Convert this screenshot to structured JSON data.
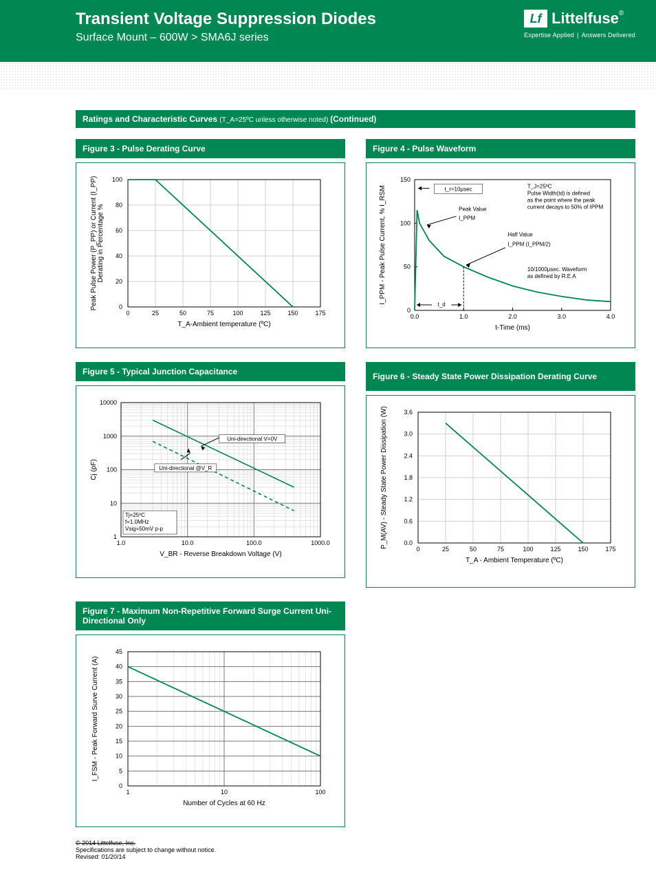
{
  "header": {
    "title": "Transient Voltage Suppression Diodes",
    "subtitle": "Surface Mount – 600W  >  SMA6J series",
    "brand_name": "Littelfuse",
    "brand_reg": "®",
    "tagline_left": "Expertise Applied",
    "tagline_right": "Answers Delivered",
    "logo_mark": "Lf"
  },
  "section_bar": {
    "main": "Ratings and Characteristic Curves ",
    "note": "(T_A=25ºC unless otherwise noted) ",
    "cont": "(Continued)"
  },
  "colors": {
    "brand": "#008752",
    "line": "#008752",
    "dash": "#008752",
    "grid": "#777777",
    "minor": "#b8b8b8",
    "border": "#008752",
    "text": "#000000"
  },
  "fig3": {
    "title": "Figure 3 - Pulse Derating Curve",
    "type": "line",
    "xlabel": "T_A-Ambient temperature (ºC)",
    "ylabel": "Peak Pulse Power (P_PP) or Current (I_PP)\nDerating in Percentage %",
    "xlim": [
      0,
      175
    ],
    "xtick_step": 25,
    "ylim": [
      0,
      100
    ],
    "ytick_step": 20,
    "points": [
      [
        0,
        100
      ],
      [
        25,
        100
      ],
      [
        150,
        0
      ]
    ],
    "line_color": "#008752",
    "grid_color": "#d0d0d0"
  },
  "fig4": {
    "title": "Figure 4 - Pulse Waveform",
    "type": "line",
    "xlabel": "t-Time (ms)",
    "ylabel": "I_PPM - Peak Pulse Current, % I_RSM",
    "xlim": [
      0,
      4.0
    ],
    "xticks": [
      0,
      1.0,
      2.0,
      3.0,
      4.0
    ],
    "ylim": [
      0,
      150
    ],
    "ytick_step": 50,
    "curve": [
      [
        0,
        0
      ],
      [
        0.05,
        115
      ],
      [
        0.1,
        100
      ],
      [
        0.3,
        80
      ],
      [
        0.6,
        62
      ],
      [
        1.0,
        50
      ],
      [
        1.5,
        38
      ],
      [
        2.0,
        28
      ],
      [
        2.5,
        21
      ],
      [
        3.0,
        16
      ],
      [
        3.5,
        12
      ],
      [
        4.0,
        10
      ]
    ],
    "line_color": "#008752",
    "annot_tr": "t_r=10μsec",
    "annot_cond": "T_J=25ºC\nPulse Width(td) is defined\nas the point where the peak\ncurrent decays to 50% of IPPM",
    "annot_peak": "Peak Value",
    "annot_peak2": "I_PPM",
    "annot_half": "Half Value",
    "annot_half2": "I_PPM  (I_PPM/2)",
    "annot_wave": "10/1000μsec. Waveform\nas defined by R.E.A",
    "annot_td": "t_d"
  },
  "fig5": {
    "title": "Figure 5 - Typical Junction Capacitance",
    "type": "loglog",
    "xlabel": "V_BR - Reverse Breakdown Voltage (V)",
    "ylabel": "Cj (pF)",
    "xlim": [
      1,
      1000
    ],
    "xticks": [
      "1.0",
      "10.0",
      "100.0",
      "1000.0"
    ],
    "ylim": [
      1,
      10000
    ],
    "yticks": [
      "1",
      "10",
      "100",
      "1000",
      "10000"
    ],
    "series": [
      {
        "label": "Uni-directional V=0V",
        "style": "solid",
        "color": "#008752",
        "points": [
          [
            3,
            3000
          ],
          [
            400,
            30
          ]
        ]
      },
      {
        "label": "Uni-directional @V_R",
        "style": "dash",
        "color": "#008752",
        "points": [
          [
            3,
            700
          ],
          [
            400,
            6
          ]
        ]
      }
    ],
    "note_box": "Tj=25ºC\nf=1.0MHz\nVsig=50mV p-p",
    "grid_color": "#777777",
    "minor_color": "#cccccc"
  },
  "fig6": {
    "title": "Figure 6 - Steady State Power Dissipation Derating Curve",
    "type": "line",
    "xlabel": "T_A - Ambient Temperature (ºC)",
    "ylabel": "P_M(AV) - Steady State Power Dissipation (W)",
    "xlim": [
      0,
      175
    ],
    "xtick_step": 25,
    "ylim": [
      0,
      3.6
    ],
    "ytick_step": 0.6,
    "points": [
      [
        25,
        3.3
      ],
      [
        150,
        0
      ]
    ],
    "line_color": "#008752",
    "grid_color": "#d0d0d0"
  },
  "fig7": {
    "title": "Figure 7 - Maximum Non-Repetitive Forward Surge Current Uni-Directional Only",
    "type": "semilogx",
    "xlabel": "Number of Cycles at 60 Hz",
    "ylabel": "I_FSM - Peak Forward Surve Current (A)",
    "xlim": [
      1,
      100
    ],
    "xticks": [
      "1",
      "10",
      "100"
    ],
    "ylim": [
      0,
      45
    ],
    "ytick_step": 5,
    "points": [
      [
        1,
        40
      ],
      [
        100,
        10
      ]
    ],
    "line_color": "#008752",
    "grid_color": "#777777",
    "minor_color": "#cccccc"
  },
  "footer": {
    "copyright": "© 2014 Littelfuse, Inc.",
    "spec": "Specifications are subject to change without notice.",
    "revised": "Revised: 01/20/14"
  }
}
